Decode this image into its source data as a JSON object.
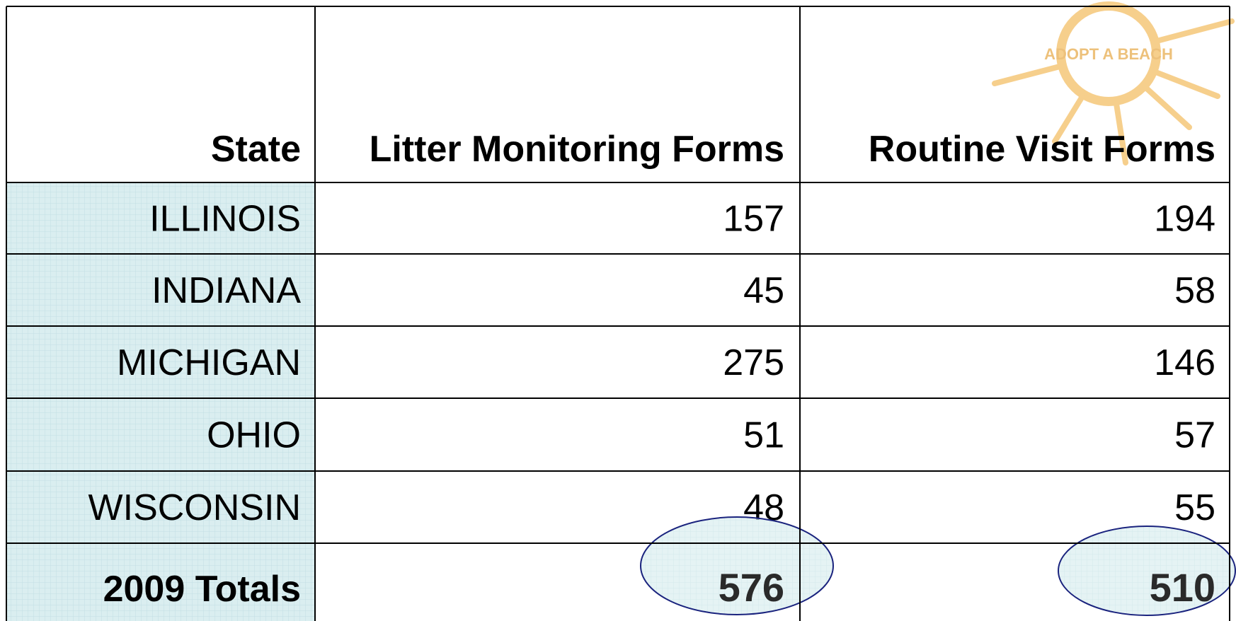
{
  "stamp": "ADOPT A BEACH",
  "table": {
    "header": [
      "State",
      "Litter Monitoring Forms",
      "Routine Visit Forms"
    ],
    "rows": [
      [
        "ILLINOIS",
        "157",
        "194"
      ],
      [
        "INDIANA",
        "45",
        "58"
      ],
      [
        "MICHIGAN",
        "275",
        "146"
      ],
      [
        "OHIO",
        "51",
        "57"
      ],
      [
        "WISCONSIN",
        "48",
        "55"
      ]
    ],
    "totals": [
      "2009 Totals",
      "576",
      "510"
    ]
  }
}
